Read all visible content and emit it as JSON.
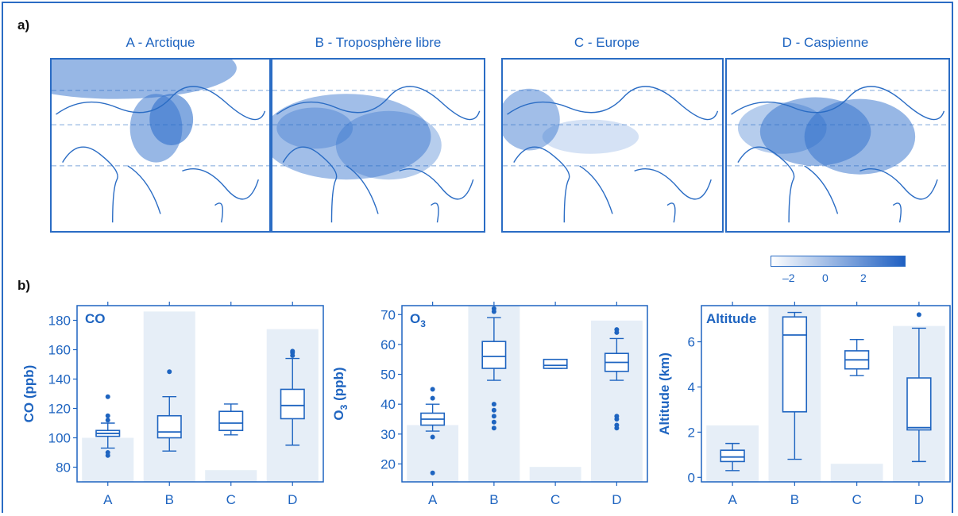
{
  "panel_a": {
    "label": "a)",
    "maps": [
      {
        "title": "A - Arctique",
        "colormass": "arctic"
      },
      {
        "title": "B - Troposphère libre",
        "colormass": "free"
      },
      {
        "title": "C - Europe",
        "colormass": "europe"
      },
      {
        "title": "D - Caspienne",
        "colormass": "caspian"
      }
    ],
    "colorbar": {
      "ticks": [
        "–2",
        "0",
        "2"
      ],
      "color_low": "#ffffff",
      "color_high": "#1e5fc2"
    }
  },
  "panel_b": {
    "label": "b)"
  },
  "colors": {
    "accent": "#1e64c0",
    "shade": "#e6eef7",
    "frame": "#2a6cc4"
  },
  "chart_data": [
    {
      "type": "box",
      "title": "CO",
      "ylabel": "CO (ppb)",
      "categories": [
        "A",
        "B",
        "C",
        "D"
      ],
      "ylim": [
        70,
        190
      ],
      "yticks": [
        80,
        100,
        120,
        140,
        160,
        180
      ],
      "background_bars": [
        100,
        186,
        78,
        174
      ],
      "boxes": [
        {
          "whisker_low": 93,
          "q1": 101,
          "median": 103,
          "q3": 105,
          "whisker_high": 110,
          "outliers": [
            88,
            90,
            112,
            115,
            128
          ]
        },
        {
          "whisker_low": 91,
          "q1": 100,
          "median": 104,
          "q3": 115,
          "whisker_high": 128,
          "outliers": [
            145
          ]
        },
        {
          "whisker_low": 102,
          "q1": 105,
          "median": 110,
          "q3": 118,
          "whisker_high": 123,
          "outliers": []
        },
        {
          "whisker_low": 95,
          "q1": 113,
          "median": 122,
          "q3": 133,
          "whisker_high": 154,
          "outliers": [
            156,
            158,
            159
          ]
        }
      ]
    },
    {
      "type": "box",
      "title": "O3",
      "ylabel": "O3 (ppb)",
      "categories": [
        "A",
        "B",
        "C",
        "D"
      ],
      "ylim": [
        14,
        73
      ],
      "yticks": [
        20,
        30,
        40,
        50,
        60,
        70
      ],
      "background_bars": [
        33,
        73,
        19,
        68
      ],
      "boxes": [
        {
          "whisker_low": 31,
          "q1": 33,
          "median": 35,
          "q3": 37,
          "whisker_high": 40,
          "outliers": [
            17,
            29,
            42,
            45
          ]
        },
        {
          "whisker_low": 48,
          "q1": 52,
          "median": 56,
          "q3": 61,
          "whisker_high": 69,
          "outliers": [
            32,
            34,
            36,
            38,
            40,
            71,
            72
          ]
        },
        {
          "whisker_low": 52,
          "q1": 52,
          "median": 53,
          "q3": 55,
          "whisker_high": 55,
          "outliers": []
        },
        {
          "whisker_low": 48,
          "q1": 51,
          "median": 54,
          "q3": 57,
          "whisker_high": 62,
          "outliers": [
            32,
            33,
            35,
            36,
            64,
            65
          ]
        }
      ]
    },
    {
      "type": "box",
      "title": "Altitude",
      "ylabel": "Altitude (km)",
      "categories": [
        "A",
        "B",
        "C",
        "D"
      ],
      "ylim": [
        -0.2,
        7.6
      ],
      "yticks": [
        0,
        2,
        4,
        6
      ],
      "background_bars": [
        2.3,
        7.6,
        0.6,
        6.7
      ],
      "boxes": [
        {
          "whisker_low": 0.3,
          "q1": 0.7,
          "median": 0.9,
          "q3": 1.2,
          "whisker_high": 1.5,
          "outliers": []
        },
        {
          "whisker_low": 0.8,
          "q1": 2.9,
          "median": 6.3,
          "q3": 7.1,
          "whisker_high": 7.3,
          "outliers": []
        },
        {
          "whisker_low": 4.5,
          "q1": 4.8,
          "median": 5.2,
          "q3": 5.6,
          "whisker_high": 6.1,
          "outliers": []
        },
        {
          "whisker_low": 0.7,
          "q1": 2.1,
          "median": 2.2,
          "q3": 4.4,
          "whisker_high": 6.6,
          "outliers": [
            7.2
          ]
        }
      ]
    }
  ]
}
